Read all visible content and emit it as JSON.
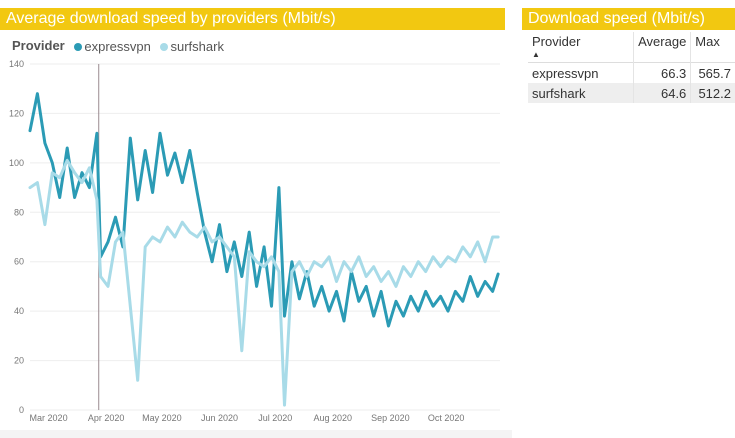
{
  "chart_title": "Average download speed by providers (Mbit/s)",
  "legend": {
    "title": "Provider",
    "items": [
      {
        "name": "expressvpn",
        "color": "#2b9bb5"
      },
      {
        "name": "surfshark",
        "color": "#a8dbe8"
      }
    ]
  },
  "chart_data": {
    "type": "line",
    "ylim": [
      0,
      140
    ],
    "y_ticks": [
      "0",
      "20",
      "40",
      "60",
      "80",
      "100",
      "120",
      "140"
    ],
    "x_tick_labels": [
      "Mar 2020",
      "Apr 2020",
      "May 2020",
      "Jun 2020",
      "Jul 2020",
      "Aug 2020",
      "Sep 2020",
      "Oct 2020"
    ],
    "x_range": [
      "2020-02-20",
      "2020-10-30"
    ],
    "marker_date": "2020-03-28",
    "series": [
      {
        "name": "expressvpn",
        "color": "#2b9bb5",
        "points": [
          [
            "2020-02-20",
            113
          ],
          [
            "2020-02-24",
            128
          ],
          [
            "2020-02-28",
            108
          ],
          [
            "2020-03-03",
            100
          ],
          [
            "2020-03-07",
            86
          ],
          [
            "2020-03-11",
            106
          ],
          [
            "2020-03-15",
            86
          ],
          [
            "2020-03-19",
            96
          ],
          [
            "2020-03-23",
            90
          ],
          [
            "2020-03-27",
            112
          ],
          [
            "2020-03-29",
            62
          ],
          [
            "2020-04-02",
            68
          ],
          [
            "2020-04-06",
            78
          ],
          [
            "2020-04-10",
            66
          ],
          [
            "2020-04-14",
            110
          ],
          [
            "2020-04-18",
            85
          ],
          [
            "2020-04-22",
            105
          ],
          [
            "2020-04-26",
            88
          ],
          [
            "2020-04-30",
            112
          ],
          [
            "2020-05-04",
            95
          ],
          [
            "2020-05-08",
            104
          ],
          [
            "2020-05-12",
            92
          ],
          [
            "2020-05-16",
            105
          ],
          [
            "2020-05-20",
            88
          ],
          [
            "2020-05-24",
            72
          ],
          [
            "2020-05-28",
            60
          ],
          [
            "2020-06-01",
            75
          ],
          [
            "2020-06-05",
            56
          ],
          [
            "2020-06-09",
            68
          ],
          [
            "2020-06-13",
            54
          ],
          [
            "2020-06-17",
            72
          ],
          [
            "2020-06-21",
            50
          ],
          [
            "2020-06-25",
            66
          ],
          [
            "2020-06-29",
            42
          ],
          [
            "2020-07-03",
            90
          ],
          [
            "2020-07-06",
            38
          ],
          [
            "2020-07-10",
            60
          ],
          [
            "2020-07-14",
            45
          ],
          [
            "2020-07-18",
            56
          ],
          [
            "2020-07-22",
            42
          ],
          [
            "2020-07-26",
            50
          ],
          [
            "2020-07-30",
            40
          ],
          [
            "2020-08-03",
            48
          ],
          [
            "2020-08-07",
            36
          ],
          [
            "2020-08-11",
            56
          ],
          [
            "2020-08-15",
            44
          ],
          [
            "2020-08-19",
            50
          ],
          [
            "2020-08-23",
            38
          ],
          [
            "2020-08-27",
            48
          ],
          [
            "2020-08-31",
            34
          ],
          [
            "2020-09-04",
            44
          ],
          [
            "2020-09-08",
            38
          ],
          [
            "2020-09-12",
            46
          ],
          [
            "2020-09-16",
            40
          ],
          [
            "2020-09-20",
            48
          ],
          [
            "2020-09-24",
            42
          ],
          [
            "2020-09-28",
            46
          ],
          [
            "2020-10-02",
            40
          ],
          [
            "2020-10-06",
            48
          ],
          [
            "2020-10-10",
            44
          ],
          [
            "2020-10-14",
            54
          ],
          [
            "2020-10-18",
            46
          ],
          [
            "2020-10-22",
            52
          ],
          [
            "2020-10-26",
            48
          ],
          [
            "2020-10-29",
            55
          ]
        ]
      },
      {
        "name": "surfshark",
        "color": "#a8dbe8",
        "points": [
          [
            "2020-02-20",
            90
          ],
          [
            "2020-02-24",
            92
          ],
          [
            "2020-02-28",
            75
          ],
          [
            "2020-03-03",
            96
          ],
          [
            "2020-03-07",
            94
          ],
          [
            "2020-03-11",
            101
          ],
          [
            "2020-03-15",
            96
          ],
          [
            "2020-03-19",
            92
          ],
          [
            "2020-03-23",
            98
          ],
          [
            "2020-03-27",
            85
          ],
          [
            "2020-03-29",
            54
          ],
          [
            "2020-04-02",
            50
          ],
          [
            "2020-04-06",
            68
          ],
          [
            "2020-04-10",
            72
          ],
          [
            "2020-04-14",
            42
          ],
          [
            "2020-04-18",
            12
          ],
          [
            "2020-04-22",
            66
          ],
          [
            "2020-04-26",
            70
          ],
          [
            "2020-04-30",
            68
          ],
          [
            "2020-05-04",
            74
          ],
          [
            "2020-05-08",
            70
          ],
          [
            "2020-05-12",
            76
          ],
          [
            "2020-05-16",
            72
          ],
          [
            "2020-05-20",
            70
          ],
          [
            "2020-05-24",
            74
          ],
          [
            "2020-05-28",
            68
          ],
          [
            "2020-06-01",
            70
          ],
          [
            "2020-06-05",
            66
          ],
          [
            "2020-06-09",
            62
          ],
          [
            "2020-06-13",
            24
          ],
          [
            "2020-06-17",
            64
          ],
          [
            "2020-06-21",
            60
          ],
          [
            "2020-06-25",
            58
          ],
          [
            "2020-06-29",
            62
          ],
          [
            "2020-07-03",
            56
          ],
          [
            "2020-07-06",
            2
          ],
          [
            "2020-07-10",
            56
          ],
          [
            "2020-07-14",
            60
          ],
          [
            "2020-07-18",
            54
          ],
          [
            "2020-07-22",
            60
          ],
          [
            "2020-07-26",
            58
          ],
          [
            "2020-07-30",
            62
          ],
          [
            "2020-08-03",
            52
          ],
          [
            "2020-08-07",
            60
          ],
          [
            "2020-08-11",
            56
          ],
          [
            "2020-08-15",
            62
          ],
          [
            "2020-08-19",
            54
          ],
          [
            "2020-08-23",
            58
          ],
          [
            "2020-08-27",
            52
          ],
          [
            "2020-08-31",
            56
          ],
          [
            "2020-09-04",
            50
          ],
          [
            "2020-09-08",
            58
          ],
          [
            "2020-09-12",
            54
          ],
          [
            "2020-09-16",
            60
          ],
          [
            "2020-09-20",
            56
          ],
          [
            "2020-09-24",
            62
          ],
          [
            "2020-09-28",
            58
          ],
          [
            "2020-10-02",
            62
          ],
          [
            "2020-10-06",
            60
          ],
          [
            "2020-10-10",
            66
          ],
          [
            "2020-10-14",
            62
          ],
          [
            "2020-10-18",
            68
          ],
          [
            "2020-10-22",
            60
          ],
          [
            "2020-10-26",
            70
          ],
          [
            "2020-10-29",
            70
          ]
        ]
      }
    ]
  },
  "table": {
    "title": "Download speed (Mbit/s)",
    "columns": [
      "Provider",
      "Average",
      "Max"
    ],
    "rows": [
      {
        "provider": "expressvpn",
        "average": "66.3",
        "max": "565.7"
      },
      {
        "provider": "surfshark",
        "average": "64.6",
        "max": "512.2"
      }
    ]
  }
}
